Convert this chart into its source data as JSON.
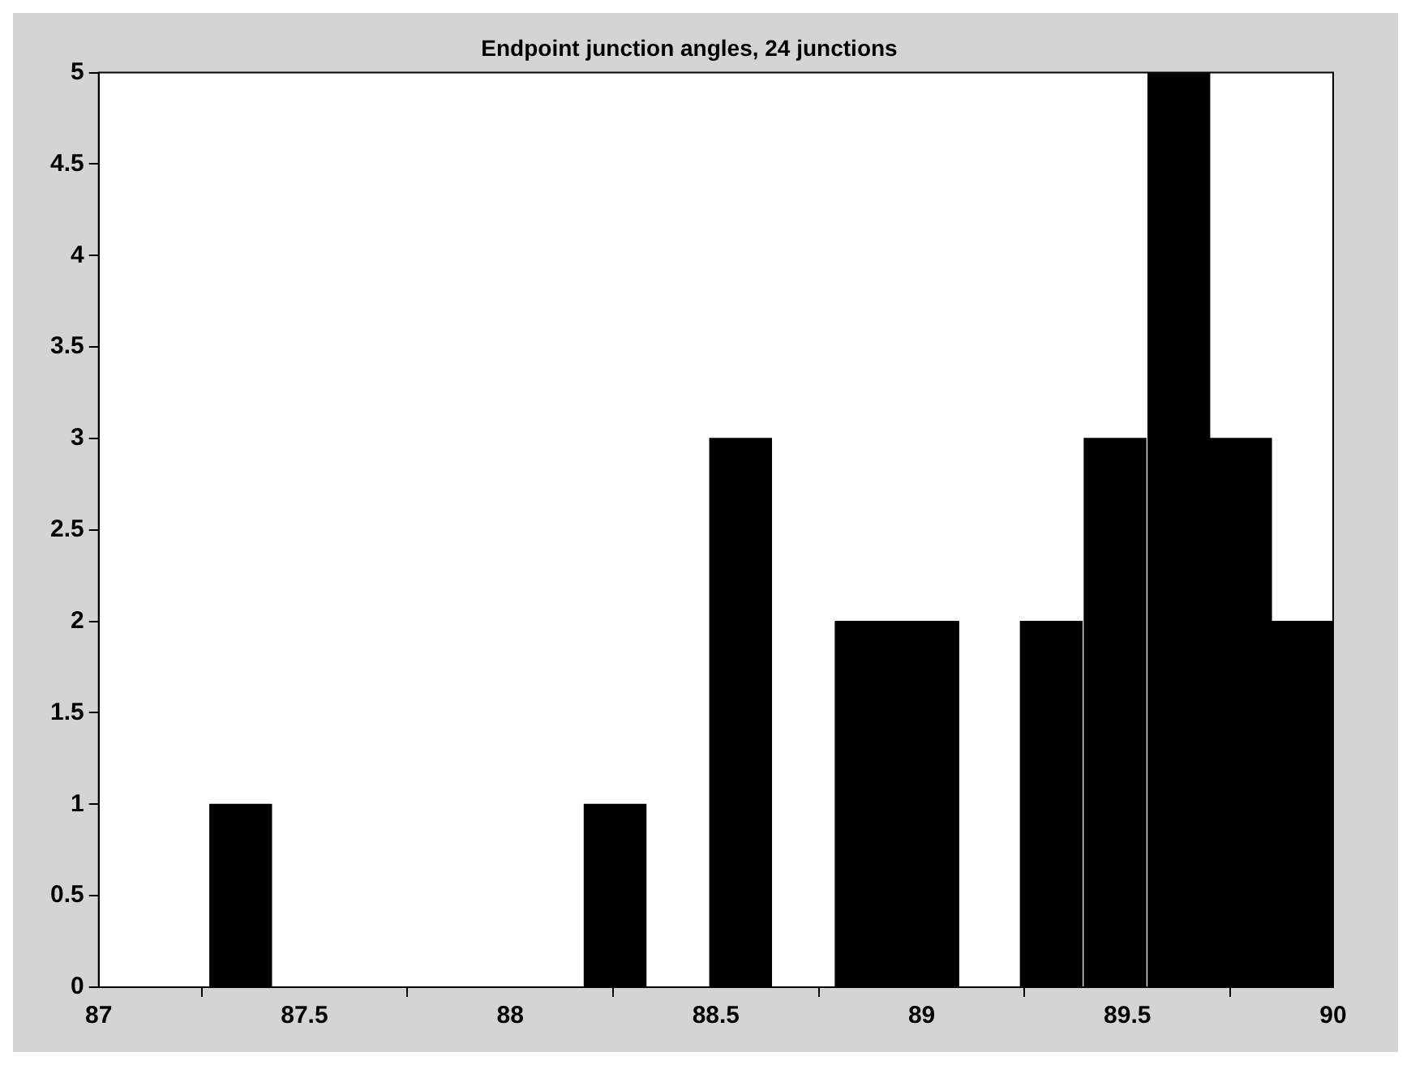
{
  "chart_data": {
    "type": "histogram",
    "title": "Endpoint junction angles, 24 junctions",
    "bins": [
      87.27,
      87.42,
      87.57,
      87.73,
      87.88,
      88.03,
      88.18,
      88.33,
      88.48,
      88.64,
      88.79,
      88.94,
      89.09,
      89.24,
      89.39,
      89.55,
      89.7,
      89.85,
      90.0
    ],
    "values": [
      1,
      0,
      0,
      0,
      0,
      0,
      1,
      0,
      3,
      0,
      2,
      2,
      0,
      2,
      3,
      5,
      3,
      2
    ],
    "color": "#000000",
    "xlim": [
      87,
      90
    ],
    "xticks": [
      87,
      87.5,
      88,
      88.5,
      89,
      89.5,
      90
    ],
    "ylim": [
      0,
      5
    ],
    "yticks": [
      0,
      0.5,
      1,
      1.5,
      2,
      2.5,
      3,
      3.5,
      4,
      4.5,
      5
    ],
    "grid": false
  }
}
